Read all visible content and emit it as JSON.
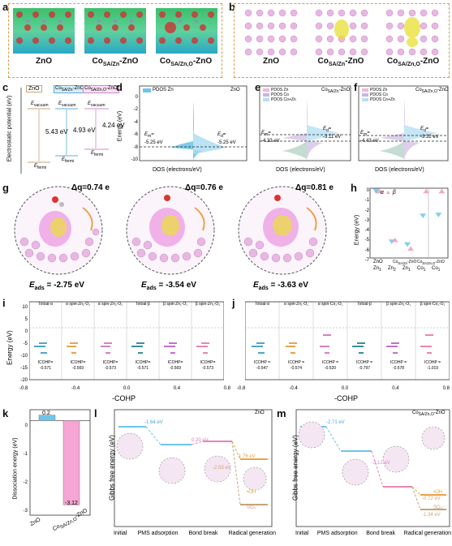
{
  "panel_a": {
    "label": "a",
    "tiles": [
      {
        "caption_main": "ZnO",
        "caption_sub": ""
      },
      {
        "caption_main": "Co",
        "caption_sub": "SA/Zn",
        "caption_tail": "-ZnO"
      },
      {
        "caption_main": "Co",
        "caption_sub": "SA/Zn,O",
        "caption_tail": "-ZnO"
      }
    ]
  },
  "panel_b": {
    "label": "b",
    "tiles": [
      {
        "caption_main": "ZnO",
        "caption_sub": ""
      },
      {
        "caption_main": "Co",
        "caption_sub": "SA/Zn",
        "caption_tail": "-ZnO"
      },
      {
        "caption_main": "Co",
        "caption_sub": "SA/Zn,O",
        "caption_tail": "-ZnO"
      }
    ]
  },
  "panel_c": {
    "label": "c",
    "ylabel": "Electrostatic potential (eV)",
    "columns": [
      {
        "name": "ZnO",
        "name_sub": "",
        "evac": "E",
        "evac_sub": "vacuum",
        "efermi": "E",
        "efermi_sub": "fermi",
        "gap": "5.43 eV",
        "color": "#c9a37a"
      },
      {
        "name": "Co",
        "name_sub": "SA/Zn",
        "name_tail": "-ZnO",
        "evac": "E",
        "evac_sub": "vacuum",
        "efermi": "E",
        "efermi_sub": "fermi",
        "gap": "4.93 eV",
        "color": "#5ab0d8"
      },
      {
        "name": "Co",
        "name_sub": "SA/Zn,O",
        "name_tail": "-ZnO",
        "evac": "E",
        "evac_sub": "vacuum",
        "efermi": "E",
        "efermi_sub": "fermi",
        "gap": "4.24 eV",
        "color": "#d18ac9"
      }
    ]
  },
  "panel_d": {
    "label": "d",
    "title": "ZnO",
    "legend": "PDOS Zn",
    "ylabel": "Energy (eV)",
    "xlabel": "DOS (electrons/eV)",
    "yticks": [
      "0",
      "-2",
      "-4",
      "-6",
      "-8",
      "-10"
    ],
    "em": "E",
    "em_sub": "m",
    "em_eq": "=",
    "em_val": "-5.25 eV",
    "ed": "E",
    "ed_sub": "d",
    "ed_eq": "=",
    "ed_val": "-5.25 eV"
  },
  "panel_e": {
    "label": "e",
    "title": "Co",
    "title_sub": "SA/Zn",
    "title_tail": "-ZnO",
    "legend": [
      "PDOS Zn",
      "PDOS Co",
      "PDOS Co+Zn"
    ],
    "xlabel": "DOS (electrons/eV)",
    "em": "E",
    "em_sub": "m",
    "em_eq": "=",
    "em_val": "-4.33 eV",
    "ed": "E",
    "ed_sub": "d",
    "ed_eq": "=",
    "ed_val": "-3.11 eV"
  },
  "panel_f": {
    "label": "f",
    "title": "Co",
    "title_sub": "SA/Zn,O",
    "title_tail": "-ZnO",
    "legend": [
      "PDOS Zn",
      "PDOS Co",
      "PDOS Co+Zn"
    ],
    "xlabel": "DOS (electrons/eV)",
    "em": "E",
    "em_sub": "m",
    "em_eq": "=",
    "em_val": "-4.43 eV",
    "ed": "E",
    "ed_sub": "d",
    "ed_eq": "=",
    "ed_val": "-3.32 eV"
  },
  "panel_g": {
    "label": "g",
    "items": [
      {
        "dq": "Δq=0.74 e",
        "eads_label": "E",
        "eads_sub": "ads",
        "eads_val": "= -2.75 eV"
      },
      {
        "dq": "Δq=0.76 e",
        "eads_label": "E",
        "eads_sub": "ads",
        "eads_val": "= -3.54 eV"
      },
      {
        "dq": "Δq=0.81 e",
        "eads_label": "E",
        "eads_sub": "ads",
        "eads_val": "= -3.63 eV"
      }
    ]
  },
  "panel_h": {
    "label": "h",
    "ylabel": "Energy (eV)",
    "legend_alpha": "α",
    "legend_beta": "β",
    "yticks": [
      "0",
      "-1",
      "-2",
      "-3",
      "-4",
      "-5",
      "-6",
      "-7"
    ],
    "xticks": [
      "Zn",
      "Zn",
      "Zn",
      "Co",
      "Co"
    ],
    "xtick_subs": [
      "1",
      "2",
      "1",
      "1",
      "1"
    ],
    "groups": [
      "ZnO",
      "Co",
      "Co"
    ],
    "group_subs": [
      "",
      "SA/Zn",
      "SA/Zn,O"
    ],
    "group_tails": [
      "",
      "-ZnO",
      "-ZnO"
    ],
    "chart_data": {
      "type": "scatter",
      "categories": [
        "Zn1",
        "Zn2",
        "Zn1",
        "Co1",
        "Co1"
      ],
      "series": [
        {
          "name": "α",
          "values": [
            0,
            -5.3,
            -5.6,
            -2.6,
            -2.5
          ]
        },
        {
          "name": "β",
          "values": [
            0,
            -5.1,
            -6.0,
            0,
            0
          ]
        }
      ],
      "ylim": [
        -7,
        0.3
      ]
    }
  },
  "panel_i": {
    "label": "i",
    "ylabel": "Energy (eV)",
    "xlabel": "-COHP",
    "xticks": [
      "-0.8",
      "-0.4",
      "0.0",
      "0.4",
      "0.8"
    ],
    "yticks": [
      "10",
      "5",
      "0",
      "-5",
      "-10",
      "-15",
      "-20"
    ],
    "columns": [
      {
        "title": "Totoal-α",
        "icohp": "ICOHP=",
        "val": "-0.571"
      },
      {
        "title": "α spin-Zn₁-O₁",
        "icohp": "ICOHP=",
        "val": "-0.569"
      },
      {
        "title": "α spin-Zn₂-O₂",
        "icohp": "ICOHP=",
        "val": "-0.573"
      },
      {
        "title": "Totoal-β",
        "icohp": "ICOHP=",
        "val": "-0.571"
      },
      {
        "title": "β spin-Zn₁-O₁",
        "icohp": "ICOHP=",
        "val": "-0.569"
      },
      {
        "title": "β spin-Zn₂-O₂",
        "icohp": "ICOHP=",
        "val": "-0.573"
      }
    ]
  },
  "panel_j": {
    "label": "j",
    "xlabel": "-COHP",
    "xticks": [
      "-0.8",
      "-0.4",
      "0.0",
      "0.4",
      "0.8"
    ],
    "columns": [
      {
        "title": "Totoal-α",
        "icohp": "ICOHP =",
        "val": "-0.547"
      },
      {
        "title": "α spin-Zn₁-O₁",
        "icohp": "ICOHP =",
        "val": "-0.574"
      },
      {
        "title": "α spin-Co₁-O₁",
        "icohp": "ICOHP =",
        "val": "-0.520"
      },
      {
        "title": "Totoal-β",
        "icohp": "ICOHP =",
        "val": "-0.797"
      },
      {
        "title": "β spin-Zn₁-O₁",
        "icohp": "ICOHP =",
        "val": "-0.578"
      },
      {
        "title": "β spin-Co₁-O₁",
        "icohp": "ICOHP =",
        "val": "-1.019"
      }
    ]
  },
  "panel_k": {
    "label": "k",
    "ylabel": "Dissociation energy (eV)",
    "yticks": [
      "0",
      "-1",
      "-2",
      "-3"
    ],
    "chart_data": {
      "type": "bar",
      "categories": [
        "ZnO",
        "Co SA/Zn,O-ZnO"
      ],
      "values": [
        0.2,
        -3.12
      ],
      "ylim": [
        -3.5,
        0.4
      ]
    },
    "value_labels": [
      "0.2",
      "-3.12"
    ],
    "xlabels": [
      {
        "main": "ZnO",
        "sub": "",
        "tail": ""
      },
      {
        "main": "Co",
        "sub": "SA/Zn,O",
        "tail": "-ZnO"
      }
    ],
    "colors": [
      "#6ec5e9",
      "#f5a6d4"
    ]
  },
  "panel_l": {
    "label": "l",
    "title": "ZnO",
    "ylabel": "Gibbs free energy (eV)",
    "xticks": [
      "Initial",
      "PMS adsorption",
      "Bond break",
      "Radical generation"
    ],
    "annotations": [
      "-1.64 eV",
      "0.20 eV",
      "1.76 eV",
      "-2.53 eV"
    ],
    "species": [
      "•OH",
      "SO₄⁻"
    ]
  },
  "panel_m": {
    "label": "m",
    "title": "Co",
    "title_sub": "SA/Zn,O",
    "title_tail": "-ZnO",
    "ylabel": "Gibbs free energy (eV)",
    "xticks": [
      "Initial",
      "PMS adsorption",
      "Bond break",
      "Radical generation"
    ],
    "annotations": [
      "-2.71 eV",
      "-3.12 eV",
      "-0.72 eV",
      "-1.34 eV"
    ],
    "species": [
      "•OH",
      "SO₄⁻"
    ]
  },
  "colors": {
    "dash_box": "#e39a3b",
    "alpha": "#6ec5e9",
    "beta": "#f29bc3",
    "pink_atom": "#e9b7e3",
    "cyan": "#6ec5e9",
    "orange": "#e8a34a"
  }
}
